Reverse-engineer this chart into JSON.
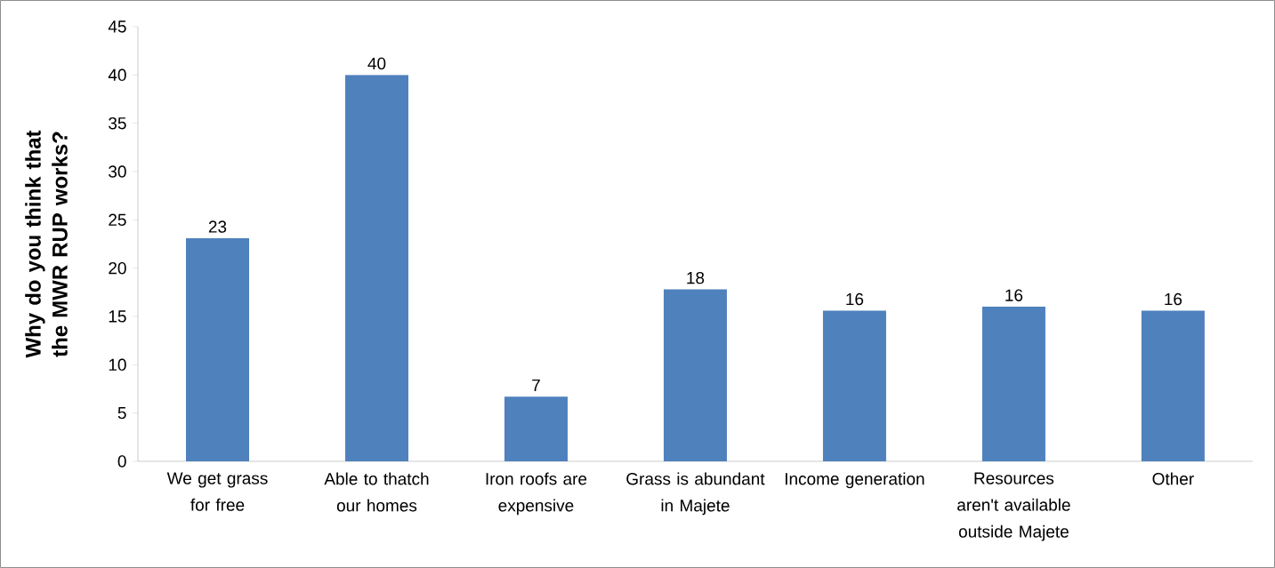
{
  "chart_data": {
    "type": "bar",
    "ylabel": "Why do you think that the MWR RUP works?",
    "categories": [
      "We get grass for free",
      "Able to thatch our homes",
      "Iron roofs are expensive",
      "Grass is abundant in Majete",
      "Income generation",
      "Resources aren't available outside Majete",
      "Other"
    ],
    "values": [
      23.1,
      40.0,
      6.7,
      17.8,
      15.6,
      16.0,
      15.6
    ],
    "value_labels": [
      "23",
      "40",
      "7",
      "18",
      "16",
      "16",
      "16"
    ],
    "color": "#4f81bd",
    "ylim": [
      0,
      45
    ],
    "yticks": [
      0,
      5,
      10,
      15,
      20,
      25,
      30,
      35,
      40,
      45
    ],
    "grid": false
  }
}
